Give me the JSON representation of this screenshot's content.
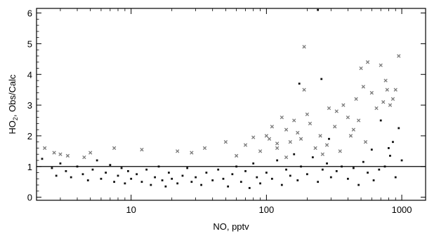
{
  "chart_data": {
    "type": "scatter",
    "xlabel": "NO, pptv",
    "ylabel_prefix": "HO",
    "ylabel_subscript": "2",
    "ylabel_suffix": ", Obs/Calc",
    "x_scale": "log",
    "xlim": [
      2,
      1500
    ],
    "ylim": [
      -0.1,
      6.15
    ],
    "x_ticks": [
      10,
      100,
      1000
    ],
    "x_tick_labels": [
      "10",
      "100",
      "1000"
    ],
    "y_ticks": [
      0,
      1,
      2,
      3,
      4,
      5,
      6
    ],
    "y_tick_labels": [
      "0",
      "1",
      "2",
      "3",
      "4",
      "5",
      "6"
    ],
    "reference_line_y": 1,
    "grid": false,
    "marker_colors": {
      "dark": "#111111",
      "gray": "#7a7a7a"
    },
    "series": [
      {
        "marker": "dot-dark",
        "points": [
          [
            2.2,
            1.25
          ],
          [
            2.6,
            0.95
          ],
          [
            2.8,
            0.7
          ],
          [
            3.0,
            1.1
          ],
          [
            3.3,
            0.85
          ],
          [
            3.6,
            0.65
          ],
          [
            4.0,
            1.0
          ],
          [
            4.4,
            0.75
          ],
          [
            4.8,
            0.55
          ],
          [
            5.2,
            0.9
          ],
          [
            5.6,
            1.2
          ],
          [
            6.0,
            0.6
          ],
          [
            6.5,
            0.8
          ],
          [
            7.0,
            1.05
          ],
          [
            7.5,
            0.5
          ],
          [
            8.0,
            0.7
          ],
          [
            8.5,
            0.95
          ],
          [
            9.0,
            0.45
          ],
          [
            9.5,
            0.85
          ],
          [
            10.0,
            0.6
          ],
          [
            11,
            0.75
          ],
          [
            12,
            0.5
          ],
          [
            13,
            0.9
          ],
          [
            14,
            0.4
          ],
          [
            15,
            0.65
          ],
          [
            16,
            1.0
          ],
          [
            17,
            0.55
          ],
          [
            18,
            0.35
          ],
          [
            19,
            0.8
          ],
          [
            20,
            0.6
          ],
          [
            22,
            0.45
          ],
          [
            24,
            0.7
          ],
          [
            26,
            0.95
          ],
          [
            28,
            0.5
          ],
          [
            30,
            0.65
          ],
          [
            33,
            0.4
          ],
          [
            36,
            0.8
          ],
          [
            40,
            0.55
          ],
          [
            44,
            0.9
          ],
          [
            48,
            0.6
          ],
          [
            52,
            0.35
          ],
          [
            56,
            0.75
          ],
          [
            60,
            1.0
          ],
          [
            65,
            0.5
          ],
          [
            70,
            0.85
          ],
          [
            75,
            0.3
          ],
          [
            80,
            1.1
          ],
          [
            85,
            0.65
          ],
          [
            90,
            0.45
          ],
          [
            100,
            0.8
          ],
          [
            110,
            0.6
          ],
          [
            120,
            1.2
          ],
          [
            130,
            0.4
          ],
          [
            140,
            0.9
          ],
          [
            150,
            0.7
          ],
          [
            160,
            1.4
          ],
          [
            170,
            0.55
          ],
          [
            180,
            1.0
          ],
          [
            200,
            0.75
          ],
          [
            220,
            1.3
          ],
          [
            240,
            0.5
          ],
          [
            260,
            0.9
          ],
          [
            280,
            1.1
          ],
          [
            300,
            0.65
          ],
          [
            330,
            0.85
          ],
          [
            360,
            1.0
          ],
          [
            400,
            0.6
          ],
          [
            440,
            0.95
          ],
          [
            480,
            0.4
          ],
          [
            520,
            1.15
          ],
          [
            560,
            0.8
          ],
          [
            620,
            0.55
          ],
          [
            680,
            0.9
          ],
          [
            750,
            1.0
          ],
          [
            820,
            1.35
          ],
          [
            860,
            1.8
          ],
          [
            900,
            0.65
          ],
          [
            950,
            2.25
          ],
          [
            1000,
            1.2
          ],
          [
            600,
            1.55
          ],
          [
            175,
            3.7
          ],
          [
            255,
            3.85
          ],
          [
            240,
            6.1
          ],
          [
            290,
            1.9
          ],
          [
            700,
            2.5
          ],
          [
            800,
            1.6
          ]
        ]
      },
      {
        "marker": "x-gray",
        "points": [
          [
            2.3,
            1.6
          ],
          [
            2.7,
            1.45
          ],
          [
            3.0,
            1.4
          ],
          [
            3.4,
            1.35
          ],
          [
            4.5,
            1.3
          ],
          [
            5.0,
            1.45
          ],
          [
            7.5,
            1.6
          ],
          [
            12,
            1.55
          ],
          [
            22,
            1.5
          ],
          [
            28,
            1.45
          ],
          [
            35,
            1.6
          ],
          [
            50,
            1.8
          ],
          [
            60,
            1.35
          ],
          [
            70,
            1.7
          ],
          [
            80,
            1.95
          ],
          [
            90,
            1.5
          ],
          [
            100,
            2.0
          ],
          [
            110,
            2.3
          ],
          [
            120,
            1.75
          ],
          [
            130,
            2.6
          ],
          [
            140,
            2.2
          ],
          [
            150,
            1.8
          ],
          [
            160,
            2.5
          ],
          [
            170,
            2.1
          ],
          [
            180,
            1.9
          ],
          [
            190,
            3.5
          ],
          [
            200,
            2.7
          ],
          [
            210,
            2.4
          ],
          [
            230,
            1.6
          ],
          [
            250,
            2.0
          ],
          [
            280,
            1.7
          ],
          [
            320,
            2.3
          ],
          [
            350,
            1.5
          ],
          [
            400,
            2.6
          ],
          [
            420,
            2.0
          ],
          [
            460,
            3.2
          ],
          [
            480,
            2.5
          ],
          [
            500,
            4.2
          ],
          [
            520,
            3.6
          ],
          [
            540,
            1.8
          ],
          [
            560,
            4.4
          ],
          [
            600,
            3.4
          ],
          [
            650,
            2.9
          ],
          [
            700,
            4.3
          ],
          [
            730,
            3.1
          ],
          [
            760,
            3.8
          ],
          [
            780,
            3.5
          ],
          [
            820,
            3.0
          ],
          [
            860,
            3.2
          ],
          [
            900,
            3.5
          ],
          [
            950,
            4.6
          ],
          [
            190,
            4.9
          ],
          [
            370,
            3.0
          ],
          [
            330,
            2.8
          ],
          [
            440,
            2.2
          ],
          [
            290,
            2.9
          ],
          [
            260,
            1.4
          ],
          [
            140,
            1.3
          ],
          [
            120,
            1.6
          ],
          [
            105,
            1.9
          ]
        ]
      }
    ]
  }
}
